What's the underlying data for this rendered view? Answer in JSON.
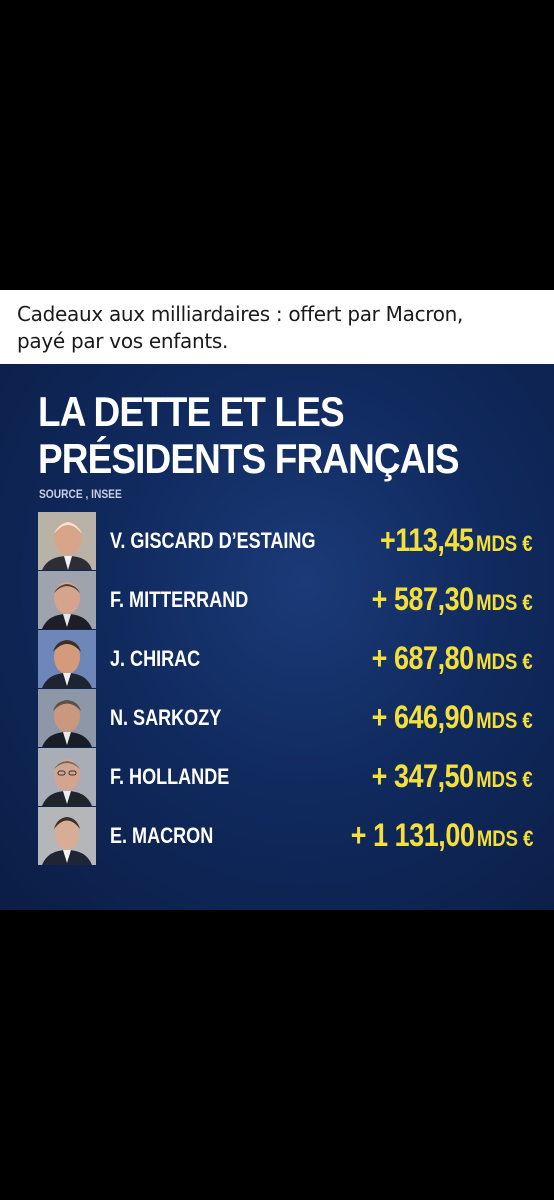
{
  "caption": {
    "line1": "Cadeaux aux milliardaires : offert par Macron,",
    "line2": "payé par vos enfants."
  },
  "card": {
    "title_line1": "LA DETTE ET LES",
    "title_line2": "PRÉSIDENTS FRANÇAIS",
    "source": "SOURCE , INSEE",
    "rows": [
      {
        "name": "V. GISCARD D’ESTAING",
        "amount": "+113,45",
        "unit": "MDS €",
        "photo": "giscard-portrait-icon"
      },
      {
        "name": "F. MITTERRAND",
        "amount": "+ 587,30",
        "unit": "MDS €",
        "photo": "mitterrand-portrait-icon"
      },
      {
        "name": "J. CHIRAC",
        "amount": "+ 687,80",
        "unit": "MDS €",
        "photo": "chirac-portrait-icon"
      },
      {
        "name": "N. SARKOZY",
        "amount": "+ 646,90",
        "unit": "MDS €",
        "photo": "sarkozy-portrait-icon"
      },
      {
        "name": "F. HOLLANDE",
        "amount": "+ 347,50",
        "unit": "MDS €",
        "photo": "hollande-portrait-icon"
      },
      {
        "name": "E. MACRON",
        "amount": "+ 1 131,00",
        "unit": "MDS €",
        "photo": "macron-portrait-icon"
      }
    ]
  },
  "colors": {
    "page_background": "#000000",
    "caption_background": "#ffffff",
    "card_background": "#102a5e",
    "title": "#ffffff",
    "amount": "#f5e03a"
  }
}
